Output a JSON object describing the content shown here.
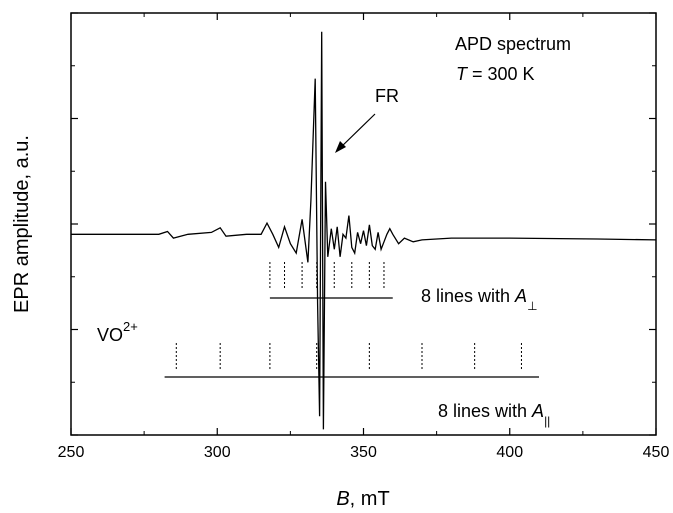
{
  "chart_data": {
    "type": "line",
    "title": "",
    "xlabel": {
      "symbol": "B",
      "rest": ", mT"
    },
    "ylabel": "EPR amplitude, a.u.",
    "xlim": [
      250,
      450
    ],
    "x_ticks": [
      250,
      300,
      350,
      400,
      450
    ],
    "ylim": [
      -1.05,
      1.2
    ],
    "y_tick_labels_shown": false,
    "grid": false,
    "series": [
      {
        "x": [
          250,
          280,
          283,
          285,
          290,
          298,
          301,
          303,
          310,
          315,
          317,
          319,
          321,
          323,
          325,
          327,
          329,
          331,
          332,
          333.5,
          334.3,
          335,
          335.7,
          336.3,
          337,
          337.8,
          339,
          340,
          341,
          342,
          343,
          344,
          345,
          346,
          347,
          348,
          349,
          350,
          351,
          352,
          353,
          354,
          355,
          356,
          357,
          358,
          359,
          360,
          362,
          364,
          367,
          370,
          380,
          400,
          430,
          450
        ],
        "y": [
          0.02,
          0.02,
          0.035,
          0.0,
          0.02,
          0.03,
          0.055,
          0.01,
          0.02,
          0.02,
          0.08,
          0.02,
          -0.05,
          0.06,
          -0.03,
          -0.08,
          0.1,
          -0.13,
          0.2,
          0.85,
          -0.35,
          -0.95,
          1.1,
          -1.02,
          0.3,
          -0.1,
          0.05,
          -0.06,
          0.06,
          -0.1,
          0.02,
          0.0,
          0.12,
          -0.05,
          -0.08,
          0.03,
          -0.03,
          0.04,
          -0.04,
          0.07,
          -0.04,
          -0.06,
          0.03,
          -0.06,
          -0.02,
          0.02,
          0.05,
          0.02,
          -0.03,
          0.0,
          -0.02,
          -0.01,
          0.0,
          0.0,
          -0.005,
          -0.01
        ]
      }
    ],
    "annotations": {
      "spectrum": "APD spectrum",
      "temp_symbol": "T",
      "temp_value": " = 300 K",
      "fr": "FR",
      "vo_main": "VO",
      "vo_sup": "2+",
      "perp_text": "8 lines with ",
      "perp_symbol": "A",
      "perp_sub": "⊥",
      "par_text": "8 lines with ",
      "par_symbol": "A",
      "par_sub": "||"
    },
    "stick_perp_positions": [
      318,
      323,
      329,
      334,
      340,
      346,
      352,
      357
    ],
    "stick_par_positions": [
      286,
      301,
      318,
      334,
      352,
      370,
      388,
      404
    ],
    "baseline_perp": [
      318,
      360
    ],
    "baseline_par": [
      282,
      410
    ]
  }
}
